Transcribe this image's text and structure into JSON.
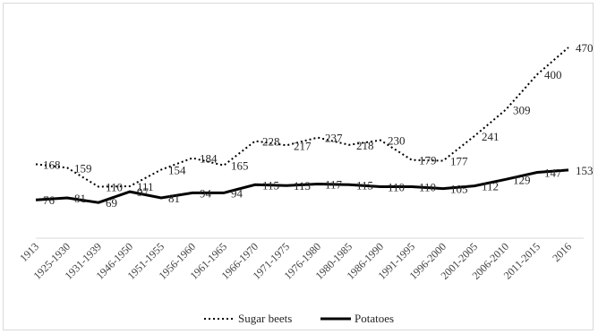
{
  "chart_data": {
    "type": "line",
    "title": "",
    "xlabel": "",
    "ylabel": "",
    "categories": [
      "1913",
      "1925-1930",
      "1931-1939",
      "1946-1950",
      "1951-1955",
      "1956-1960",
      "1961-1965",
      "1966-1970",
      "1971-1975",
      "1976-1980",
      "1980-1985",
      "1986-1990",
      "1991-1995",
      "1996-2000",
      "2001-2005",
      "2006-2010",
      "2011-2015",
      "2016"
    ],
    "series": [
      {
        "name": "Sugar beets",
        "style": "dotted",
        "color": "#000000",
        "values": [
          168,
          159,
          110,
          111,
          154,
          184,
          165,
          228,
          217,
          237,
          218,
          230,
          179,
          177,
          241,
          309,
          400,
          470
        ]
      },
      {
        "name": "Potatoes",
        "style": "solid",
        "color": "#000000",
        "values": [
          76,
          81,
          69,
          97,
          81,
          94,
          94,
          115,
          113,
          117,
          115,
          110,
          110,
          105,
          112,
          129,
          147,
          153
        ]
      }
    ],
    "grid": false,
    "legend_position": "bottom"
  }
}
